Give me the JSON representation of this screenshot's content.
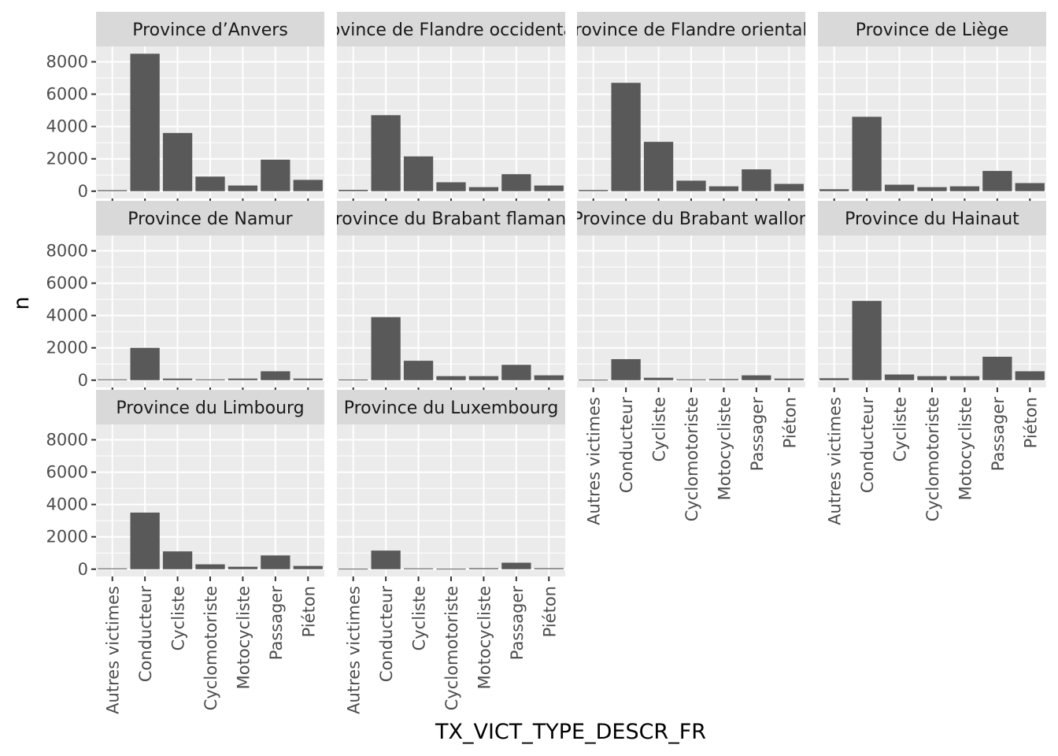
{
  "chart_data": {
    "type": "bar",
    "facet_type": "wrap",
    "xlabel": "TX_VICT_TYPE_DESCR_FR",
    "ylabel": "n",
    "ylim": [
      -450,
      8950
    ],
    "yticks": [
      0,
      2000,
      4000,
      6000,
      8000
    ],
    "grid": true,
    "categories": [
      "Autres victimes",
      "Conducteur",
      "Cycliste",
      "Cyclomotoriste",
      "Motocycliste",
      "Passager",
      "Piéton"
    ],
    "facets": [
      {
        "label": "Province d’Anvers",
        "values": [
          60,
          8500,
          3600,
          900,
          350,
          1950,
          700
        ]
      },
      {
        "label": "Province de Flandre occidentale",
        "values": [
          80,
          4700,
          2150,
          550,
          250,
          1050,
          350
        ]
      },
      {
        "label": "Province de Flandre orientale",
        "values": [
          70,
          6700,
          3050,
          650,
          300,
          1350,
          450
        ]
      },
      {
        "label": "Province de Liège",
        "values": [
          120,
          4600,
          400,
          250,
          300,
          1250,
          500
        ]
      },
      {
        "label": "Province de Namur",
        "values": [
          50,
          2000,
          100,
          50,
          100,
          550,
          100
        ]
      },
      {
        "label": "Province du Brabant flamand",
        "values": [
          40,
          3900,
          1200,
          250,
          250,
          950,
          300
        ]
      },
      {
        "label": "Province du Brabant wallon",
        "values": [
          30,
          1300,
          150,
          50,
          70,
          300,
          100
        ]
      },
      {
        "label": "Province du Hainaut",
        "values": [
          120,
          4900,
          350,
          250,
          250,
          1450,
          550
        ]
      },
      {
        "label": "Province du Limbourg",
        "values": [
          50,
          3500,
          1100,
          300,
          150,
          850,
          200
        ]
      },
      {
        "label": "Province du Luxembourg",
        "values": [
          30,
          1150,
          50,
          30,
          60,
          400,
          60
        ]
      }
    ]
  },
  "colors": {
    "panel_background": "#ebebeb",
    "strip_background": "#d9d9d9",
    "grid": "#ffffff",
    "bar": "#595959",
    "tick": "#333333"
  }
}
